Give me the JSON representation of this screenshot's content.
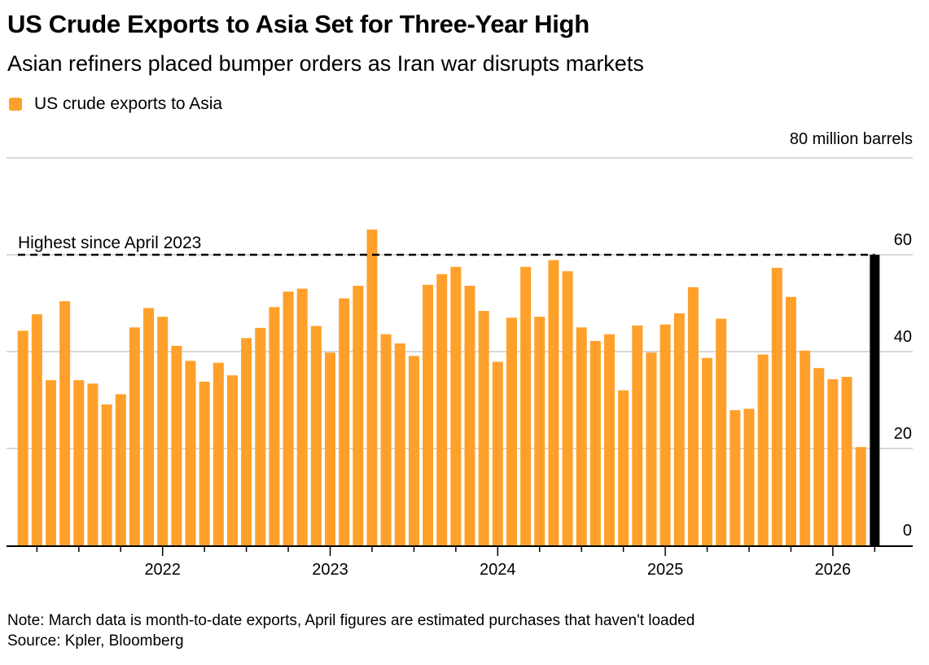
{
  "header": {
    "title": "US Crude Exports to Asia Set for Three-Year High",
    "subtitle": "Asian refiners placed bumper orders as Iran war disrupts markets"
  },
  "colors": {
    "bar": "#FFA02B",
    "estimate_bar": "#000000",
    "gridline": "#CCCCCC",
    "axis": "#000000"
  },
  "footer": {
    "note": "Note: March data is month-to-date exports, April figures are estimated purchases that haven't loaded",
    "source": "Source: Kpler, Bloomberg"
  },
  "chart_data": {
    "type": "bar",
    "title": "US Crude Exports to Asia Set for Three-Year High",
    "subtitle": "Asian refiners placed bumper orders as Iran war disrupts markets",
    "legend": [
      {
        "label": "US crude exports to Asia",
        "color": "#FFA02B"
      }
    ],
    "legend_position": "top-left",
    "unit_label": "80 million barrels",
    "ylabel": "million barrels",
    "ylim": [
      0,
      80
    ],
    "yticks": [
      0,
      20,
      40,
      60,
      80
    ],
    "ytick_labels": [
      "0",
      "20",
      "40",
      "60",
      "80 million barrels"
    ],
    "grid": true,
    "y_axis_side": "right",
    "start_month": "2021-03",
    "x_tick_labels": [
      {
        "label": "2022",
        "index": 10
      },
      {
        "label": "2023",
        "index": 22
      },
      {
        "label": "2024",
        "index": 34
      },
      {
        "label": "2025",
        "index": 46
      },
      {
        "label": "2026",
        "index": 58
      }
    ],
    "series": [
      {
        "name": "US crude exports to Asia",
        "values": [
          44.3,
          47.7,
          34.1,
          50.4,
          34.1,
          33.4,
          29.1,
          31.2,
          45.0,
          49.0,
          47.2,
          41.2,
          38.1,
          33.8,
          37.7,
          35.1,
          42.8,
          44.9,
          49.2,
          52.4,
          53.0,
          45.3,
          39.8,
          51.0,
          53.6,
          65.2,
          43.6,
          41.7,
          39.1,
          53.8,
          56.0,
          57.5,
          53.6,
          48.4,
          37.9,
          47.0,
          57.5,
          47.2,
          58.9,
          56.6,
          45.0,
          42.2,
          43.6,
          32.0,
          45.4,
          39.8,
          45.6,
          47.9,
          53.3,
          38.7,
          46.8,
          27.9,
          28.2,
          39.4,
          57.3,
          51.3,
          40.2,
          36.6,
          34.3,
          34.8,
          20.3
        ]
      },
      {
        "name": "April estimated purchases",
        "values": [
          60
        ]
      }
    ],
    "annotations": [
      {
        "text": "Highest since April 2023",
        "y": 60,
        "style": "dashed-line"
      }
    ]
  }
}
